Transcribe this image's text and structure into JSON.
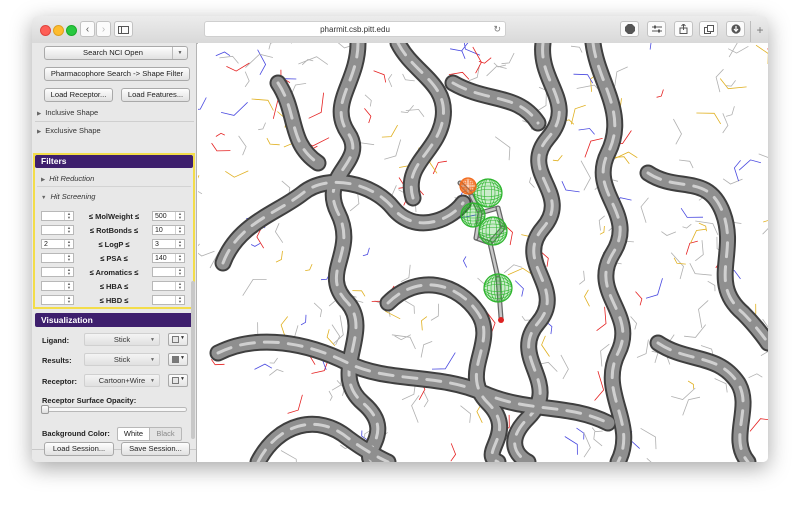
{
  "browser": {
    "url": "pharmit.csb.pitt.edu",
    "nav_back": "‹",
    "nav_forward": "›",
    "toolbar_icons": [
      "adblock-icon",
      "extension-icon",
      "share-icon",
      "tabs-icon",
      "download-icon"
    ],
    "new_tab": "+"
  },
  "sidebar": {
    "search_button": "Search NCI Open",
    "shape_filter_button": "Pharmacophore Search -> Shape Filter",
    "load_receptor": "Load Receptor...",
    "load_features": "Load Features...",
    "inclusive_shape": "Inclusive Shape",
    "exclusive_shape": "Exclusive Shape",
    "filters_title": "Filters",
    "hit_reduction": "Hit Reduction",
    "hit_screening": "Hit Screening",
    "filters": [
      {
        "min": "",
        "label": "≤ MolWeight ≤",
        "max": "500"
      },
      {
        "min": "",
        "label": "≤ RotBonds ≤",
        "max": "10"
      },
      {
        "min": "2",
        "label": "≤ LogP ≤",
        "max": "3"
      },
      {
        "min": "",
        "label": "≤ PSA ≤",
        "max": "140"
      },
      {
        "min": "",
        "label": "≤ Aromatics ≤",
        "max": ""
      },
      {
        "min": "",
        "label": "≤ HBA ≤",
        "max": ""
      },
      {
        "min": "",
        "label": "≤ HBD ≤",
        "max": ""
      }
    ],
    "visualization_title": "Visualization",
    "ligand_label": "Ligand:",
    "ligand_style": "Stick",
    "ligand_color": "#e6e6e6",
    "results_label": "Results:",
    "results_style": "Stick",
    "results_color": "#7a7a7a",
    "receptor_label": "Receptor:",
    "receptor_style": "Cartoon+Wire",
    "receptor_color": "#e6e6e6",
    "surface_opacity_label": "Receptor Surface Opacity:",
    "surface_opacity": 0,
    "background_label": "Background Color:",
    "bg_white": "White",
    "bg_black": "Black",
    "load_session": "Load Session...",
    "save_session": "Save Session..."
  },
  "viewer": {
    "protein_color": "#8f8f8f",
    "pharmacophore_features": [
      {
        "type": "hydrophobic",
        "color": "#2db52d"
      },
      {
        "type": "hydrophobic",
        "color": "#2db52d"
      },
      {
        "type": "hydrophobic",
        "color": "#2db52d"
      },
      {
        "type": "hydrophobic",
        "color": "#2db52d"
      },
      {
        "type": "hbond-acceptor",
        "color": "#f26a1b"
      }
    ]
  }
}
